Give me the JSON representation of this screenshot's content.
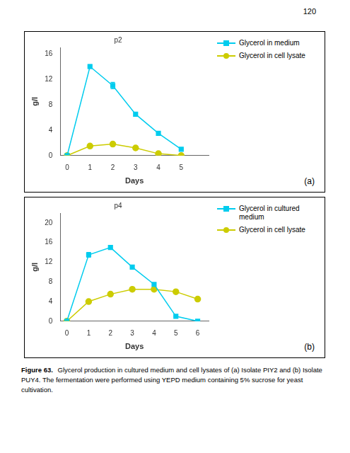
{
  "page_number": "120",
  "caption": {
    "label": "Figure 63.",
    "text": "Glycerol production in cultured medium and cell lysates of (a) Isolate PIY2 and (b) Isolate PUY4. The fermentation were performed using YEPD medium containing 5% sucrose for yeast cultivation."
  },
  "chart_data": [
    {
      "type": "line",
      "title": "p2",
      "annotation": "(a)",
      "xlabel": "Days",
      "ylabel": "g/l",
      "x": [
        0,
        1,
        2,
        3,
        4,
        5
      ],
      "xlim": [
        -0.3,
        6.2
      ],
      "xticks": [
        0,
        1,
        2,
        3,
        4,
        5,
        {
          "value": 6,
          "label": ""
        }
      ],
      "ylim": [
        0,
        17
      ],
      "yticks": [
        0,
        4,
        8,
        12,
        16
      ],
      "grid": false,
      "legend": "right",
      "series": [
        {
          "name": "Glycerol in medium",
          "color": "#00CCEE",
          "marker": "square",
          "values": [
            0,
            14,
            11,
            6.5,
            3.5,
            1.0
          ],
          "errors": [
            0,
            0.3,
            0.5,
            0.3,
            0.2,
            0.1
          ]
        },
        {
          "name": "Glycerol in cell lysate",
          "color": "#CCCC00",
          "marker": "circle",
          "values": [
            0,
            1.5,
            1.8,
            1.2,
            0.3,
            0
          ],
          "errors": [
            0,
            0.2,
            0.2,
            0.1,
            0.1,
            0
          ]
        }
      ]
    },
    {
      "type": "line",
      "title": "p4",
      "annotation": "(b)",
      "xlabel": "Days",
      "ylabel": "g/l",
      "x": [
        0,
        1,
        2,
        3,
        4,
        5,
        6
      ],
      "xlim": [
        -0.3,
        6.5
      ],
      "xticks": [
        0,
        1,
        2,
        3,
        4,
        5,
        6
      ],
      "ylim": [
        0,
        22
      ],
      "yticks": [
        0,
        4,
        8,
        12,
        16,
        20
      ],
      "grid": false,
      "legend": "right",
      "series": [
        {
          "name": "Glycerol in cultured\nmedium",
          "color": "#00CCEE",
          "marker": "square",
          "values": [
            0,
            13.5,
            15.0,
            11.0,
            7.5,
            1.0,
            0
          ],
          "errors": [
            0,
            0.5,
            0.4,
            0.3,
            0.3,
            0.1,
            0
          ]
        },
        {
          "name": "Glycerol in cell lysate",
          "color": "#CCCC00",
          "marker": "circle",
          "values": [
            0,
            4.0,
            5.5,
            6.5,
            6.5,
            6.0,
            4.5
          ],
          "errors": [
            0,
            0.2,
            0.2,
            0.2,
            0.2,
            0.2,
            0.2
          ]
        }
      ]
    }
  ]
}
